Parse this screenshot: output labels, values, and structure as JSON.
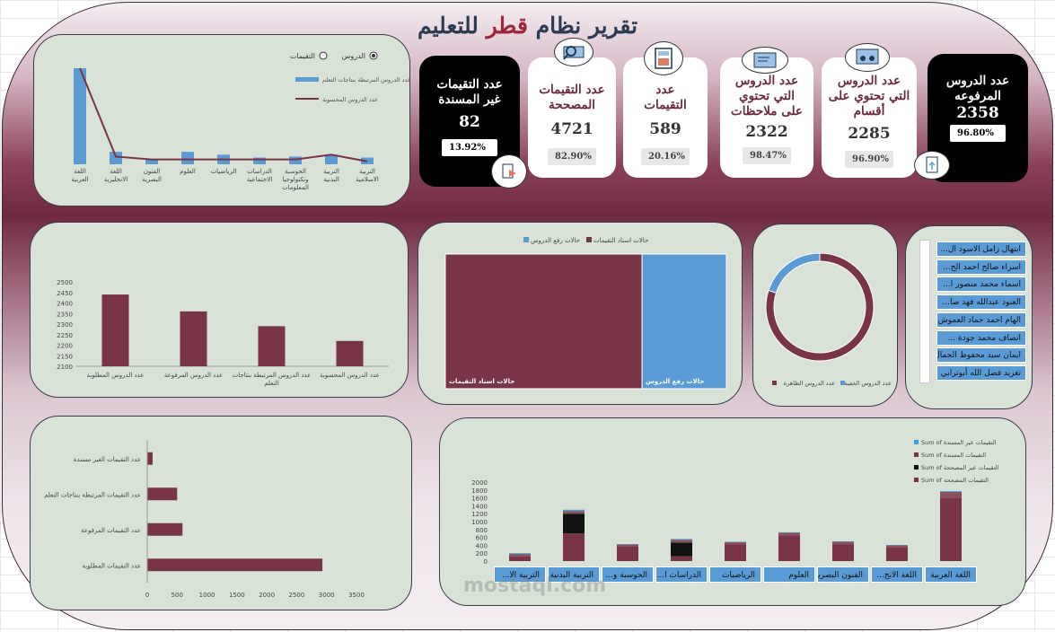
{
  "title_parts": [
    "تقرير نظام ",
    "قطر",
    " للتعليم"
  ],
  "kpis": [
    {
      "label": "عدد الدروس المرفوعه",
      "value": "2358",
      "pct": "96.80%",
      "dark": true
    },
    {
      "label": "عدد الدروس التي تحتوي على أقسام",
      "value": "2285",
      "pct": "96.90%"
    },
    {
      "label": "عدد الدروس التي تحتوي على ملاحظات",
      "value": "2322",
      "pct": "98.47%"
    },
    {
      "label": "عدد التقيمات",
      "value": "589",
      "pct": "20.16%"
    },
    {
      "label": "عدد التقيمات المصححة",
      "value": "4721",
      "pct": "82.90%"
    },
    {
      "label": "عدد التقيمات غير المسندة",
      "value": "82",
      "pct": "13.92%",
      "dark": true
    }
  ],
  "radio": {
    "opt1": "الدروس",
    "opt2": "التقيمات"
  },
  "slicer": [
    "ابتهال زامل الاسود ال...",
    "اسراء صالح احمد الح...",
    "اسماء محمد منصور ا...",
    "العنود عبدالله فهد صا...",
    "الهام احمد حماد العموش",
    "انصاف محمد جودة ...",
    "ايمان سيد محفوظ الجمال",
    "تغريد فضل الله أبوترابي"
  ],
  "chart_data": [
    {
      "type": "bar",
      "categories": [
        "اللغة العربية",
        "اللغة الانجليزية",
        "الفنون البصرية",
        "العلوم",
        "الرياضيات",
        "الدراسات الاجتماعية",
        "الحوسبة وتكنولوجيا المعلومات",
        "التربية البدنية",
        "التربية الاسلامية"
      ],
      "series": [
        {
          "name": "عدد الدروس المرتبطة بنتاجات التعلم",
          "values": [
            100,
            13,
            5,
            13,
            10,
            7,
            8,
            10,
            7
          ]
        },
        {
          "name": "عدد الدروس المحسوبة",
          "values": [
            100,
            8,
            5,
            5,
            5,
            5,
            5,
            10,
            3
          ]
        }
      ],
      "legend": [
        "عدد الدروس المرتبطة بنتاجات التعلم",
        "عدد الدروس المحسوبة"
      ]
    },
    {
      "type": "bar",
      "categories": [
        "عدد الدروس المطلوبة",
        "عدد الدروس المرفوعة",
        "عدد الدروس المرتبطة بنتاجات التعلم",
        "عدد الدروس المحسوبة"
      ],
      "values": [
        2440,
        2360,
        2290,
        2220
      ],
      "ylim": [
        2100,
        2500
      ],
      "yticks": [
        "2100",
        "2150",
        "2200",
        "2250",
        "2300",
        "2350",
        "2400",
        "2450",
        "2500"
      ]
    },
    {
      "type": "treemap",
      "categories": [
        "حالات اسناد التقيمات",
        "حالات رفع الدروس"
      ],
      "values": [
        70,
        30
      ],
      "legend": [
        "حالات اسناد التقيمات",
        "حالات رفع الدروس"
      ]
    },
    {
      "type": "pie",
      "categories": [
        "عدد الدروس الظاهرة",
        "عدد الدروس الخفية"
      ],
      "values": [
        80,
        20
      ],
      "legend": [
        "عدد الدروس الظاهرة",
        "عدد الدروس الخفية"
      ]
    },
    {
      "type": "bar",
      "orientation": "horizontal",
      "categories": [
        "عدد التقيمات الغير مسندة",
        "عدد التقيمات المرتبطة بنتاجات التعلم",
        "عدد التقيمات المرفوعة",
        "عدد التقيمات المطلوبة"
      ],
      "values": [
        90,
        500,
        590,
        2930
      ],
      "xlim": [
        0,
        3500
      ],
      "xticks": [
        "0",
        "500",
        "1000",
        "1500",
        "2000",
        "2500",
        "3000",
        "3500"
      ]
    },
    {
      "type": "bar",
      "stacked": true,
      "categories": [
        "اللغة العربية",
        "اللغة الانج...",
        "الفنون البصرية",
        "العلوم",
        "الرياضيات",
        "الدراسات ا...",
        "الحوسبة و...",
        "التربية البدنية",
        "التربية الا..."
      ],
      "series": [
        {
          "name": "Sum of التقيمات المصححة",
          "values": [
            1600,
            350,
            420,
            650,
            420,
            120,
            380,
            700,
            120
          ]
        },
        {
          "name": "Sum of التقيمات عير المصححة",
          "values": [
            0,
            0,
            0,
            0,
            0,
            350,
            0,
            500,
            0
          ]
        },
        {
          "name": "Sum of التقيمات المسندة",
          "values": [
            150,
            50,
            70,
            70,
            60,
            70,
            40,
            70,
            60
          ]
        },
        {
          "name": "Sum of التقيمات عير المسندة",
          "values": [
            20,
            10,
            10,
            10,
            10,
            20,
            10,
            30,
            20
          ]
        }
      ],
      "ylim": [
        0,
        2000
      ],
      "yticks": [
        "0",
        "200",
        "400",
        "600",
        "800",
        "1000",
        "1200",
        "1400",
        "1600",
        "1800",
        "2000"
      ],
      "legend": [
        "Sum of التقيمات عير المسندة",
        "Sum of التقيمات المسندة",
        "Sum of التقيمات عير المصححة",
        "Sum of التقيمات المصححة"
      ]
    }
  ],
  "watermark": "mostaql.com"
}
